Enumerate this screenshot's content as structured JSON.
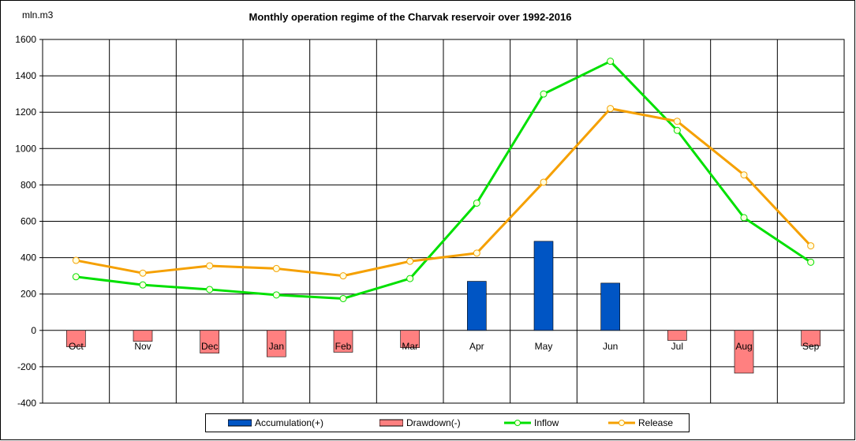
{
  "chart_data": {
    "type": "bar+line",
    "title": "Monthly operation regime of the Charvak reservoir over 1992-2016",
    "unit_label": "mln.m3",
    "categories": [
      "Oct",
      "Nov",
      "Dec",
      "Jan",
      "Feb",
      "Mar",
      "Apr",
      "May",
      "Jun",
      "Jul",
      "Aug",
      "Sep"
    ],
    "ylim": [
      -400,
      1600
    ],
    "yticks": [
      -400,
      -200,
      0,
      200,
      400,
      600,
      800,
      1000,
      1200,
      1400,
      1600
    ],
    "grid": true,
    "legend_position": "bottom",
    "series": [
      {
        "name": "Accumulation(+)",
        "kind": "bar",
        "color": "#0055c4",
        "values": [
          0,
          0,
          0,
          0,
          0,
          0,
          270,
          490,
          260,
          0,
          0,
          0
        ]
      },
      {
        "name": "Drawdown(-)",
        "kind": "bar",
        "color": "#ff8080",
        "values": [
          -90,
          -60,
          -125,
          -145,
          -120,
          -95,
          0,
          0,
          0,
          -55,
          -235,
          -85
        ]
      },
      {
        "name": "Inflow",
        "kind": "line",
        "color": "#00e000",
        "values": [
          295,
          250,
          225,
          195,
          175,
          285,
          700,
          1300,
          1480,
          1100,
          620,
          375
        ]
      },
      {
        "name": "Release",
        "kind": "line",
        "color": "#f5a000",
        "values": [
          385,
          315,
          355,
          340,
          300,
          380,
          425,
          815,
          1220,
          1150,
          855,
          465
        ]
      }
    ]
  }
}
